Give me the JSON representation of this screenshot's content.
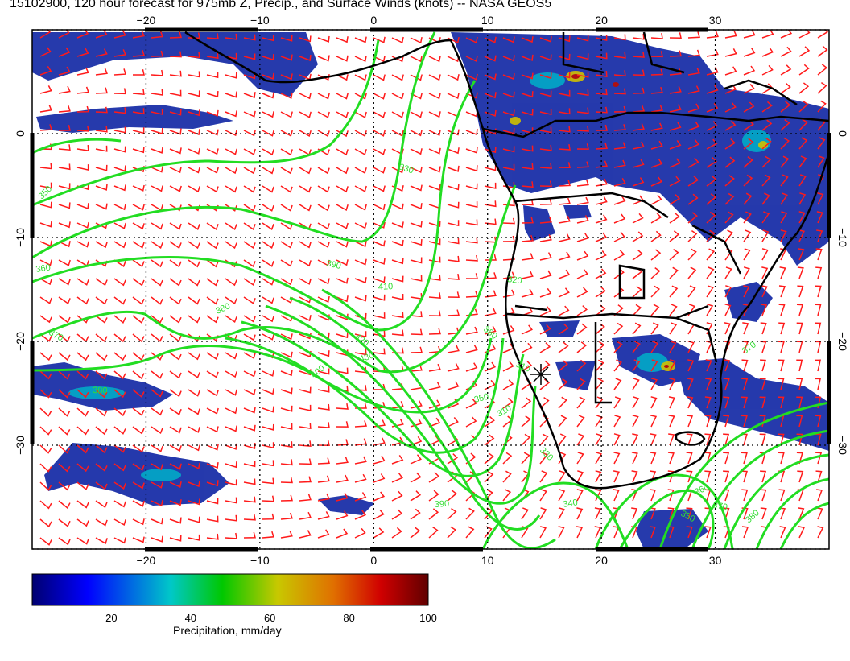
{
  "title": "15102900, 120 hour forecast for 975mb Z, Precip., and Surface Winds (knots) -- NASA GEOS5",
  "map": {
    "lon_range": [
      -30,
      40
    ],
    "lat_range": [
      -40,
      10
    ],
    "lon_ticks": [
      -20,
      -10,
      0,
      10,
      20,
      30
    ],
    "lat_ticks": [
      0,
      -10,
      -20,
      -30
    ],
    "lon_tick_labels": [
      "−20",
      "−10",
      "0",
      "10",
      "20",
      "30"
    ],
    "lat_tick_labels": [
      "0",
      "−10",
      "−20",
      "−30"
    ],
    "contour_labels": [
      "350",
      "360",
      "370",
      "380",
      "390",
      "400",
      "410",
      "420",
      "430",
      "330",
      "370",
      "380",
      "380",
      "350",
      "310",
      "310",
      "320",
      "330",
      "340",
      "350",
      "360",
      "370",
      "380",
      "390"
    ],
    "colors": {
      "coast": "#000000",
      "contour": "#22dd22",
      "wind": "#ff1a1a",
      "grid": "#000000"
    },
    "marker": "asterisk"
  },
  "colorbar": {
    "title": "Precipitation, mm/day",
    "min": 0,
    "max": 100,
    "tick_values": [
      "20",
      "40",
      "60",
      "80",
      "100"
    ],
    "colors": [
      "#000070",
      "#0000ff",
      "#00c8c8",
      "#00c800",
      "#c8c800",
      "#e07000",
      "#d00000",
      "#600000"
    ]
  }
}
